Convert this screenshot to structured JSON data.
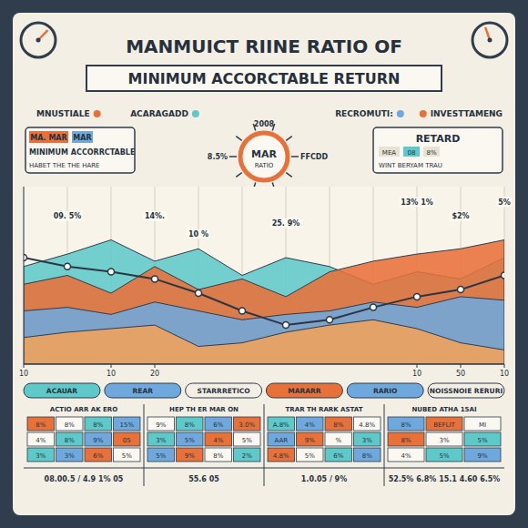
{
  "header": {
    "title": "MANMUICT RIINE  RATIO OF",
    "banner": "MINIMUM ACCORCTABLE RETURN"
  },
  "labels": [
    "MNUSTIALE",
    "ACARAGADD",
    "RECROMUTI:",
    "INVESTTAMENG"
  ],
  "left_panel": {
    "tags": [
      "MA. MAR",
      "MAR"
    ],
    "title": "MINIMUM ACCORRCTABLE",
    "lines": [
      "HABET THE THE HARE"
    ]
  },
  "gauge": {
    "label": "MAR",
    "sub": "RATIO",
    "readings": [
      "2008",
      "8.5%",
      "FFCDD"
    ]
  },
  "right_panel": {
    "title": "RETARD",
    "tags": [
      "MEA",
      "08",
      "8%"
    ],
    "lines": [
      "WINT BERYAM TRAU"
    ]
  },
  "chart_data": {
    "type": "area",
    "categories": [
      "10",
      null,
      "10",
      "20",
      null,
      null,
      null,
      null,
      null,
      "10",
      "50",
      "10"
    ],
    "series": [
      {
        "color": "#5fc9c9",
        "values": [
          55,
          62,
          70,
          58,
          65,
          50,
          60,
          55,
          45,
          52,
          48,
          60
        ]
      },
      {
        "color": "#e8713a",
        "values": [
          45,
          50,
          40,
          55,
          42,
          48,
          38,
          52,
          58,
          62,
          65,
          70
        ]
      },
      {
        "color": "#6fa8dc",
        "values": [
          30,
          32,
          28,
          35,
          30,
          25,
          28,
          30,
          35,
          32,
          38,
          36
        ]
      },
      {
        "color": "#f0a25a",
        "values": [
          15,
          18,
          20,
          22,
          10,
          12,
          18,
          22,
          25,
          20,
          12,
          8
        ]
      },
      {
        "type": "line",
        "marker": "circle",
        "color": "#2b3644",
        "values": [
          60,
          55,
          52,
          48,
          40,
          30,
          22,
          25,
          32,
          38,
          42,
          50
        ]
      }
    ],
    "ylim": [
      0,
      100
    ],
    "grid": true,
    "tick_labels": "x",
    "annotations": [
      {
        "text": "09. 5%",
        "x": 1,
        "y": 82
      },
      {
        "text": "14%.",
        "x": 3,
        "y": 82
      },
      {
        "text": "10 %",
        "x": 4,
        "y": 72
      },
      {
        "text": "25. 9%",
        "x": 6,
        "y": 78
      },
      {
        "text": "13% 1%",
        "x": 9,
        "y": 90
      },
      {
        "text": "$2%",
        "x": 10,
        "y": 82
      },
      {
        "text": "5%",
        "x": 11,
        "y": 90
      }
    ]
  },
  "strip": [
    "ACAUAR",
    "REAR",
    "STARRRETICO",
    "MARARR",
    "RARIO",
    "NOISSNOIE RERURI"
  ],
  "table": {
    "headers": [
      "ACTIO  ARR  AK  ERO",
      "HEP  TH  ER  MAR  ON",
      "TRAR  TH  RARK  ASTAT",
      "NUBED  ATHA  15AI"
    ],
    "groups": [
      [
        [
          "8%",
          "8%",
          "8%",
          "15%"
        ],
        [
          "4%",
          "8%",
          "9%",
          "05"
        ],
        [
          "3%",
          "3%",
          "6%",
          "5%"
        ]
      ],
      [
        [
          "9%",
          "8%",
          "6%",
          "3.0%"
        ],
        [
          "3%",
          "5%",
          "4%",
          "5%"
        ],
        [
          "5%",
          "9%",
          "8%",
          "2%"
        ]
      ],
      [
        [
          "A.8%",
          "4%",
          "8%",
          "4.8%"
        ],
        [
          "AAR",
          "9%",
          "%",
          "3%"
        ],
        [
          "4.8%",
          "5%",
          "6%",
          "8%"
        ]
      ],
      [
        [
          "8%",
          "BEFLIT",
          "MI"
        ],
        [
          "8%",
          "3%",
          "5%"
        ],
        [
          "4%",
          "5%",
          "9%"
        ]
      ]
    ],
    "footer": [
      "08.00.5 / 4.9  1%  05",
      "55.6   05",
      "1.0.05  / 9%",
      "52.5% 6.8% 15.1 4.60 6.5%"
    ]
  }
}
